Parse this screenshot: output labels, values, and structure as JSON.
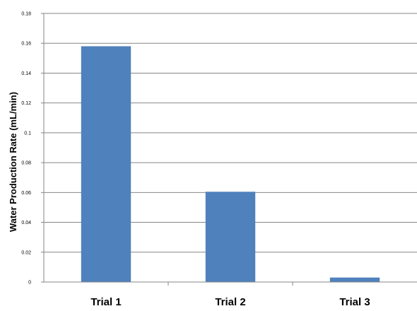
{
  "chart_data": {
    "type": "bar",
    "title": "",
    "xlabel": "",
    "ylabel": "Water Production Rate (mL/min)",
    "categories": [
      "Trial 1",
      "Trial 2",
      "Trial 3"
    ],
    "values": [
      0.158,
      0.0605,
      0.003
    ],
    "ylim": [
      0,
      0.18
    ],
    "yticks": [
      "0",
      "0.02",
      "0.04",
      "0.06",
      "0.08",
      "0.1",
      "0.12",
      "0.14",
      "0.16",
      "0.18"
    ],
    "grid": true,
    "legend": "none",
    "bar_color": "#4F81BD"
  }
}
